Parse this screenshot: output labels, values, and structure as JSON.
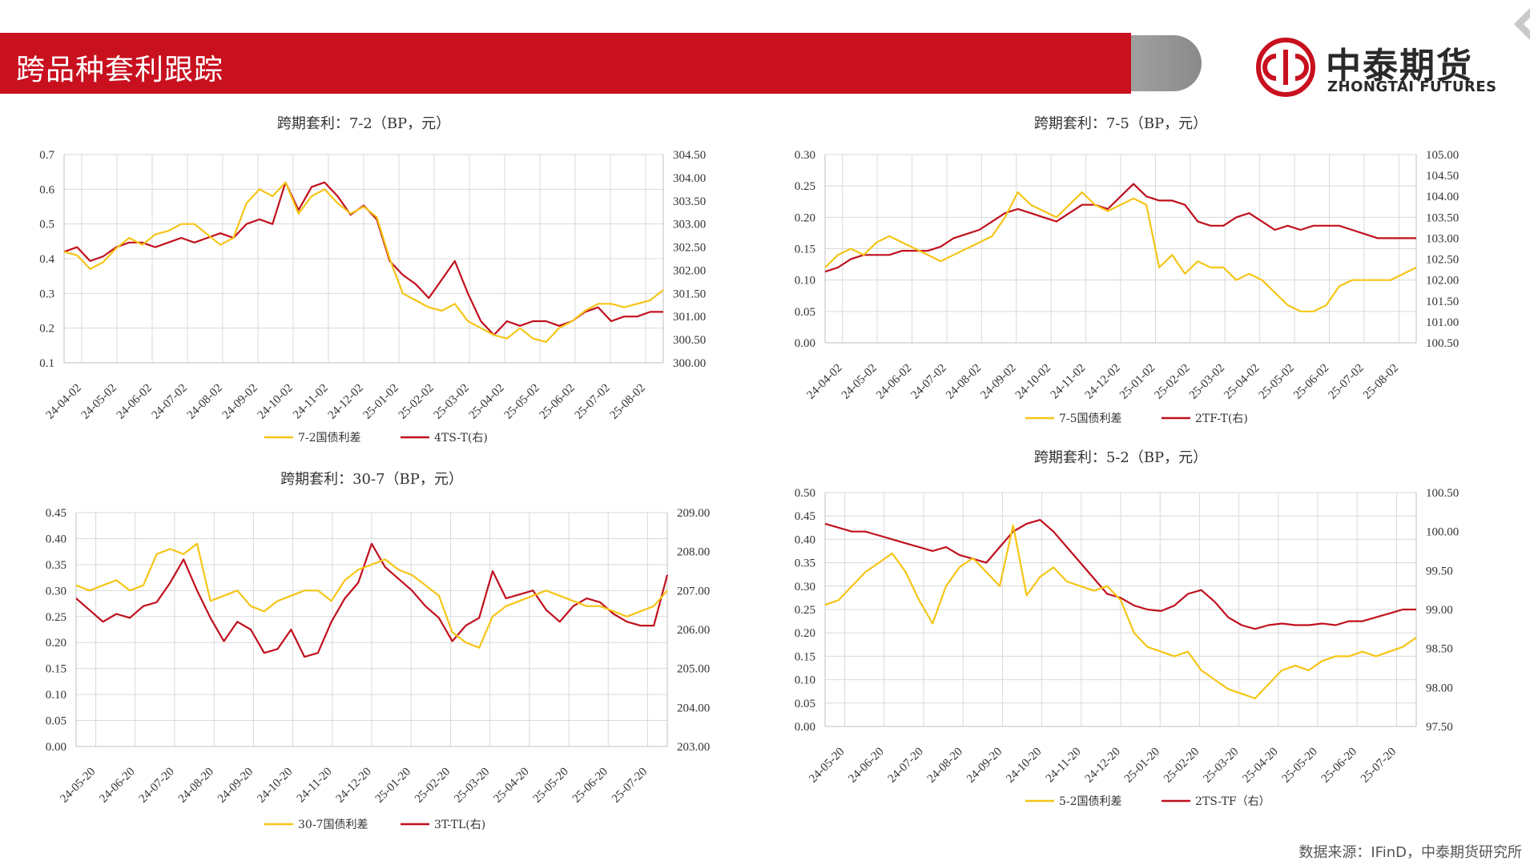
{
  "page_title": "跨品种套利跟踪",
  "logo": {
    "cn": "中泰期货",
    "en": "ZHONGTAI FUTURES"
  },
  "source": "数据来源：IFinD，中泰期货研究所",
  "colors": {
    "red": "#c8101f",
    "gold": "#f5c518",
    "dark_red": "#c0101d"
  },
  "chart_data": [
    {
      "type": "line",
      "title": "跨期套利：7-2（BP，元）",
      "left_ticks": [
        "0.7",
        "0.6",
        "0.5",
        "0.4",
        "0.3",
        "0.2",
        "0.1"
      ],
      "right_ticks": [
        "304.50",
        "304.00",
        "303.50",
        "303.00",
        "302.50",
        "302.00",
        "301.50",
        "301.00",
        "300.50",
        "300.00"
      ],
      "ylim_left": [
        0.1,
        0.7
      ],
      "ylim_right": [
        300.0,
        304.5
      ],
      "x_labels": [
        "24-04-02",
        "24-05-02",
        "24-06-02",
        "24-07-02",
        "24-08-02",
        "24-09-02",
        "24-10-02",
        "24-11-02",
        "24-12-02",
        "25-01-02",
        "25-02-02",
        "25-03-02",
        "25-04-02",
        "25-05-02",
        "25-06-02",
        "25-07-02",
        "25-08-02"
      ],
      "series": [
        {
          "name": "7-2国债利差",
          "axis": "left",
          "color": "#f5c518",
          "values": [
            0.42,
            0.41,
            0.37,
            0.39,
            0.43,
            0.46,
            0.44,
            0.47,
            0.48,
            0.5,
            0.5,
            0.47,
            0.44,
            0.46,
            0.56,
            0.6,
            0.58,
            0.62,
            0.53,
            0.58,
            0.6,
            0.56,
            0.53,
            0.55,
            0.52,
            0.4,
            0.3,
            0.28,
            0.26,
            0.25,
            0.27,
            0.22,
            0.2,
            0.18,
            0.17,
            0.2,
            0.17,
            0.16,
            0.2,
            0.22,
            0.25,
            0.27,
            0.27,
            0.26,
            0.27,
            0.28,
            0.31
          ]
        },
        {
          "name": "4TS-T(右)",
          "axis": "right",
          "color": "#c0101d",
          "values": [
            302.4,
            302.5,
            302.2,
            302.3,
            302.5,
            302.6,
            302.6,
            302.5,
            302.6,
            302.7,
            302.6,
            302.7,
            302.8,
            302.7,
            303.0,
            303.1,
            303.0,
            303.9,
            303.3,
            303.8,
            303.9,
            303.6,
            303.2,
            303.4,
            303.1,
            302.2,
            301.9,
            301.7,
            301.4,
            301.8,
            302.2,
            301.5,
            300.9,
            300.6,
            300.9,
            300.8,
            300.9,
            300.9,
            300.8,
            300.9,
            301.1,
            301.2,
            300.9,
            301.0,
            301.0,
            301.1,
            301.1
          ]
        }
      ]
    },
    {
      "type": "line",
      "title": "跨期套利：7-5（BP，元）",
      "left_ticks": [
        "0.30",
        "0.25",
        "0.20",
        "0.15",
        "0.10",
        "0.05",
        "0.00"
      ],
      "right_ticks": [
        "105.00",
        "104.50",
        "104.00",
        "103.50",
        "103.00",
        "102.50",
        "102.00",
        "101.50",
        "101.00",
        "100.50"
      ],
      "ylim_left": [
        0.0,
        0.3
      ],
      "ylim_right": [
        100.5,
        105.0
      ],
      "x_labels": [
        "24-04-02",
        "24-05-02",
        "24-06-02",
        "24-07-02",
        "24-08-02",
        "24-09-02",
        "24-10-02",
        "24-11-02",
        "24-12-02",
        "25-01-02",
        "25-02-02",
        "25-03-02",
        "25-04-02",
        "25-05-02",
        "25-06-02",
        "25-07-02",
        "25-08-02"
      ],
      "series": [
        {
          "name": "7-5国债利差",
          "axis": "left",
          "color": "#f5c518",
          "values": [
            0.12,
            0.14,
            0.15,
            0.14,
            0.16,
            0.17,
            0.16,
            0.15,
            0.14,
            0.13,
            0.14,
            0.15,
            0.16,
            0.17,
            0.2,
            0.24,
            0.22,
            0.21,
            0.2,
            0.22,
            0.24,
            0.22,
            0.21,
            0.22,
            0.23,
            0.22,
            0.12,
            0.14,
            0.11,
            0.13,
            0.12,
            0.12,
            0.1,
            0.11,
            0.1,
            0.08,
            0.06,
            0.05,
            0.05,
            0.06,
            0.09,
            0.1,
            0.1,
            0.1,
            0.1,
            0.11,
            0.12
          ]
        },
        {
          "name": "2TF-T(右)",
          "axis": "right",
          "color": "#c0101d",
          "values": [
            102.2,
            102.3,
            102.5,
            102.6,
            102.6,
            102.6,
            102.7,
            102.7,
            102.7,
            102.8,
            103.0,
            103.1,
            103.2,
            103.4,
            103.6,
            103.7,
            103.6,
            103.5,
            103.4,
            103.6,
            103.8,
            103.8,
            103.7,
            104.0,
            104.3,
            104.0,
            103.9,
            103.9,
            103.8,
            103.4,
            103.3,
            103.3,
            103.5,
            103.6,
            103.4,
            103.2,
            103.3,
            103.2,
            103.3,
            103.3,
            103.3,
            103.2,
            103.1,
            103.0,
            103.0,
            103.0,
            103.0
          ]
        }
      ]
    },
    {
      "type": "line",
      "title": "跨期套利：30-7（BP，元）",
      "left_ticks": [
        "0.45",
        "0.40",
        "0.35",
        "0.30",
        "0.25",
        "0.20",
        "0.15",
        "0.10",
        "0.05",
        "0.00"
      ],
      "right_ticks": [
        "209.00",
        "208.00",
        "207.00",
        "206.00",
        "205.00",
        "204.00",
        "203.00"
      ],
      "ylim_left": [
        0.0,
        0.45
      ],
      "ylim_right": [
        203.0,
        209.0
      ],
      "x_labels": [
        "24-05-20",
        "24-06-20",
        "24-07-20",
        "24-08-20",
        "24-09-20",
        "24-10-20",
        "24-11-20",
        "24-12-20",
        "25-01-20",
        "25-02-20",
        "25-03-20",
        "25-04-20",
        "25-05-20",
        "25-06-20",
        "25-07-20"
      ],
      "series": [
        {
          "name": "30-7国债利差",
          "axis": "left",
          "color": "#f5c518",
          "values": [
            0.31,
            0.3,
            0.31,
            0.32,
            0.3,
            0.31,
            0.37,
            0.38,
            0.37,
            0.39,
            0.28,
            0.29,
            0.3,
            0.27,
            0.26,
            0.28,
            0.29,
            0.3,
            0.3,
            0.28,
            0.32,
            0.34,
            0.35,
            0.36,
            0.34,
            0.33,
            0.31,
            0.29,
            0.22,
            0.2,
            0.19,
            0.25,
            0.27,
            0.28,
            0.29,
            0.3,
            0.29,
            0.28,
            0.27,
            0.27,
            0.26,
            0.25,
            0.26,
            0.27,
            0.3
          ]
        },
        {
          "name": "3T-TL(右)",
          "axis": "right",
          "color": "#c0101d",
          "values": [
            206.8,
            206.5,
            206.2,
            206.4,
            206.3,
            206.6,
            206.7,
            207.2,
            207.8,
            207.0,
            206.3,
            205.7,
            206.2,
            206.0,
            205.4,
            205.5,
            206.0,
            205.3,
            205.4,
            206.2,
            206.8,
            207.2,
            208.2,
            207.6,
            207.3,
            207.0,
            206.6,
            206.3,
            205.7,
            206.1,
            206.3,
            207.5,
            206.8,
            206.9,
            207.0,
            206.5,
            206.2,
            206.6,
            206.8,
            206.7,
            206.4,
            206.2,
            206.1,
            206.1,
            207.4
          ]
        }
      ]
    },
    {
      "type": "line",
      "title": "跨期套利：5-2（BP，元）",
      "left_ticks": [
        "0.50",
        "0.45",
        "0.40",
        "0.35",
        "0.30",
        "0.25",
        "0.20",
        "0.15",
        "0.10",
        "0.05",
        "0.00"
      ],
      "right_ticks": [
        "100.50",
        "100.00",
        "99.50",
        "99.00",
        "98.50",
        "98.00",
        "97.50"
      ],
      "ylim_left": [
        0.0,
        0.5
      ],
      "ylim_right": [
        97.5,
        100.5
      ],
      "x_labels": [
        "24-05-20",
        "24-06-20",
        "24-07-20",
        "24-08-20",
        "24-09-20",
        "24-10-20",
        "24-11-20",
        "24-12-20",
        "25-01-20",
        "25-02-20",
        "25-03-20",
        "25-04-20",
        "25-05-20",
        "25-06-20",
        "25-07-20"
      ],
      "series": [
        {
          "name": "5-2国债利差",
          "axis": "left",
          "color": "#f5c518",
          "values": [
            0.26,
            0.27,
            0.3,
            0.33,
            0.35,
            0.37,
            0.33,
            0.27,
            0.22,
            0.3,
            0.34,
            0.36,
            0.33,
            0.3,
            0.43,
            0.28,
            0.32,
            0.34,
            0.31,
            0.3,
            0.29,
            0.3,
            0.27,
            0.2,
            0.17,
            0.16,
            0.15,
            0.16,
            0.12,
            0.1,
            0.08,
            0.07,
            0.06,
            0.09,
            0.12,
            0.13,
            0.12,
            0.14,
            0.15,
            0.15,
            0.16,
            0.15,
            0.16,
            0.17,
            0.19
          ]
        },
        {
          "name": "2TS-TF（右）",
          "axis": "right",
          "color": "#c0101d",
          "values": [
            100.1,
            100.05,
            100.0,
            100.0,
            99.95,
            99.9,
            99.85,
            99.8,
            99.75,
            99.8,
            99.7,
            99.65,
            99.6,
            99.8,
            100.0,
            100.1,
            100.15,
            100.0,
            99.8,
            99.6,
            99.4,
            99.2,
            99.15,
            99.05,
            99.0,
            98.98,
            99.05,
            99.2,
            99.25,
            99.1,
            98.9,
            98.8,
            98.75,
            98.8,
            98.82,
            98.8,
            98.8,
            98.82,
            98.8,
            98.85,
            98.85,
            98.9,
            98.95,
            99.0,
            99.0
          ]
        }
      ]
    }
  ]
}
